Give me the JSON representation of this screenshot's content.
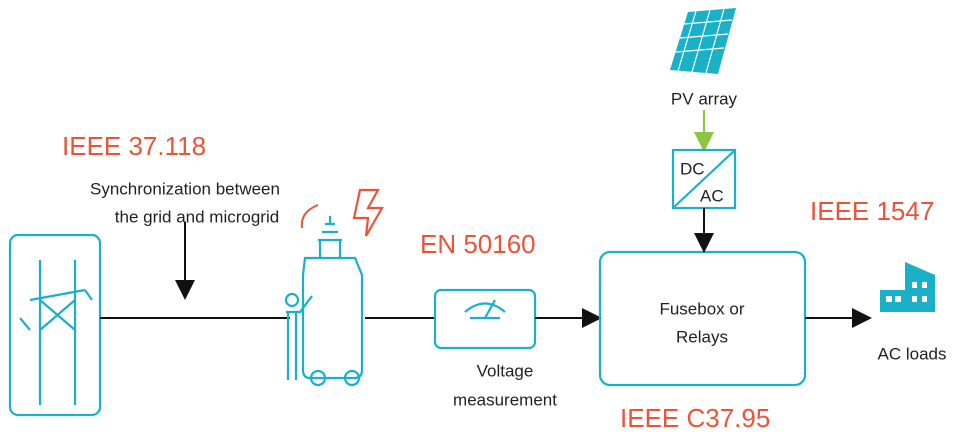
{
  "standards": [
    "IEEE 37.118",
    "EN 50160",
    "IEEE 1547",
    "IEEE C37.95"
  ],
  "sync_note": [
    "Synchronization between",
    "the grid and microgrid"
  ],
  "voltage": [
    "Voltage",
    "measurement"
  ],
  "pv": "PV array",
  "converter": {
    "input": "DC",
    "output": "AC"
  },
  "fusebox": [
    "Fusebox or",
    "Relays"
  ],
  "loads": "AC loads"
}
